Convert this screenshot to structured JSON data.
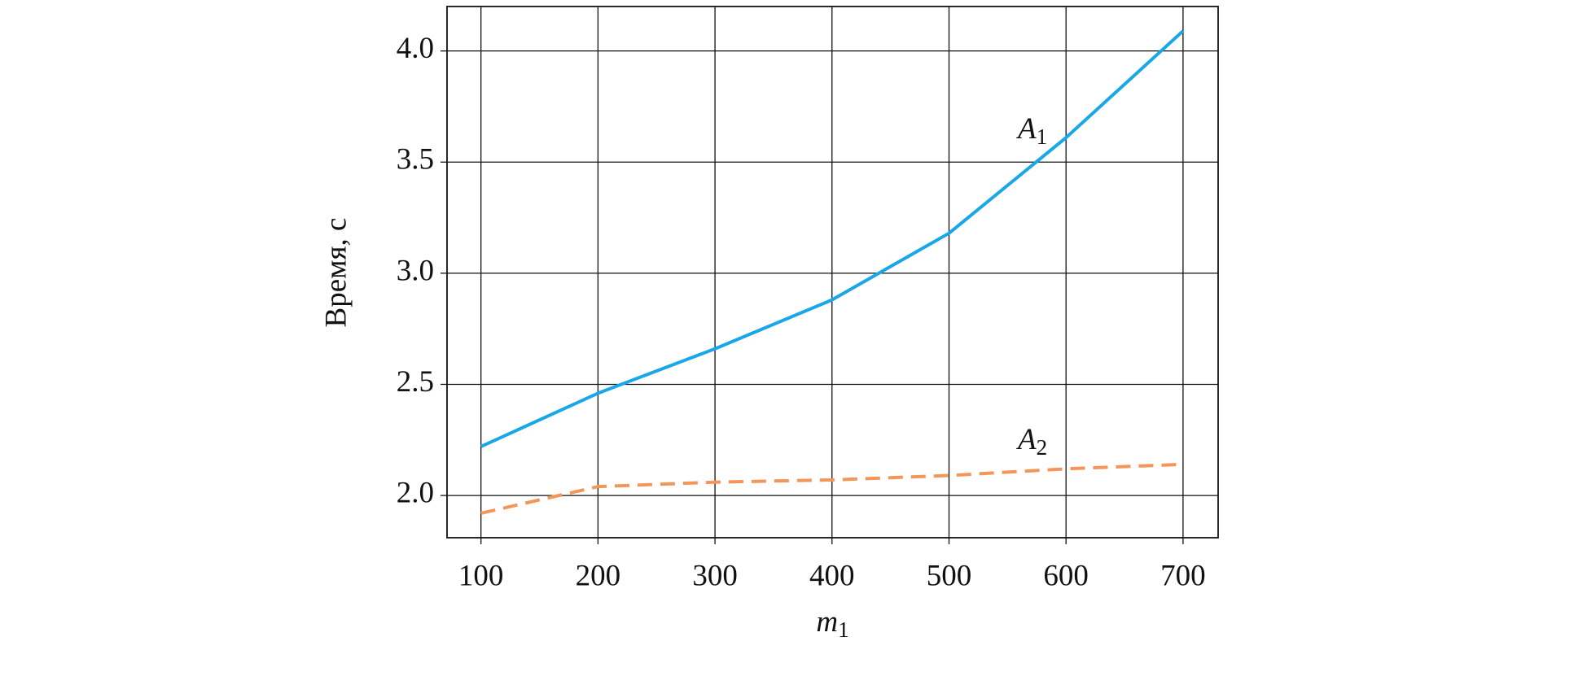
{
  "chart_data": {
    "type": "line",
    "x_label": "m1",
    "y_label": "Время, с",
    "x": [
      100,
      200,
      300,
      400,
      500,
      600,
      700
    ],
    "series": [
      {
        "name": "A1",
        "color": "#1aa7e8",
        "dashed": false,
        "values": [
          2.22,
          2.46,
          2.66,
          2.88,
          3.18,
          3.61,
          4.09
        ]
      },
      {
        "name": "A2",
        "color": "#f4965a",
        "dashed": true,
        "values": [
          1.92,
          2.04,
          2.06,
          2.07,
          2.09,
          2.12,
          2.14
        ]
      }
    ],
    "xlim": [
      71,
      730
    ],
    "ylim": [
      1.81,
      4.2
    ],
    "xticks": [
      100,
      200,
      300,
      400,
      500,
      600,
      700
    ],
    "yticks": [
      {
        "value": 2.0,
        "label": "2.0"
      },
      {
        "value": 2.5,
        "label": "2.5"
      },
      {
        "value": 3.0,
        "label": "3.0"
      },
      {
        "value": 3.5,
        "label": "3.5"
      },
      {
        "value": 4.0,
        "label": "4.0"
      }
    ],
    "grid": true
  }
}
